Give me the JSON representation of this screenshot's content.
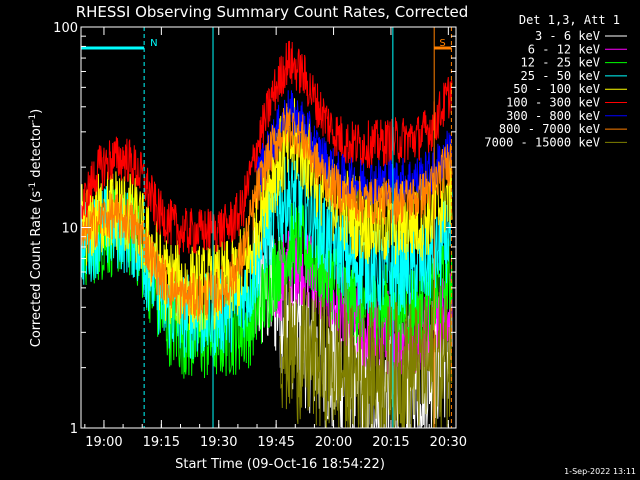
{
  "chart_data": {
    "type": "line",
    "title": "RHESSI Observing Summary Count Rates, Corrected",
    "xlabel": "Start Time (09-Oct-16 18:54:22)",
    "ylabel_main": "Corrected Count Rate (s",
    "ylabel_sup1": "-1",
    "ylabel_mid": " detector",
    "ylabel_sup2": "-1",
    "ylabel_end": ")",
    "ylog": true,
    "ylim": [
      1,
      100
    ],
    "xlim_minutes": [
      0,
      98
    ],
    "x_ticks": [
      {
        "label": "19:00",
        "minutes": 6
      },
      {
        "label": "19:15",
        "minutes": 21
      },
      {
        "label": "19:30",
        "minutes": 36
      },
      {
        "label": "19:45",
        "minutes": 51
      },
      {
        "label": "20:00",
        "minutes": 66
      },
      {
        "label": "20:15",
        "minutes": 81
      },
      {
        "label": "20:30",
        "minutes": 96
      }
    ],
    "y_ticks": [
      {
        "label": "1",
        "value": 1
      },
      {
        "label": "10",
        "value": 10
      },
      {
        "label": "100",
        "value": 100
      }
    ],
    "legend_title": "Det 1,3, Att 1",
    "legend_placement": "right",
    "timestamp": "1-Sep-2022 13:11",
    "flags": [
      {
        "label": "N",
        "start": 0,
        "end": 16.5,
        "color": "#00ffff"
      },
      {
        "label": "S",
        "start": 92.3,
        "end": 96.8,
        "color": "#ff8000"
      }
    ],
    "markers": [
      {
        "minutes": 16.5,
        "color": "#00ffff",
        "style": "dashed"
      },
      {
        "minutes": 34.5,
        "color": "#00ffff",
        "style": "solid"
      },
      {
        "minutes": 81.5,
        "color": "#00ffff",
        "style": "solid"
      },
      {
        "minutes": 92.3,
        "color": "#ff8000",
        "style": "solid"
      },
      {
        "minutes": 96.8,
        "color": "#ff8000",
        "style": "dashed"
      }
    ],
    "series": [
      {
        "name": "3 - 6 keV",
        "color": "#ffffff",
        "x": [
          45,
          50,
          55,
          57,
          60,
          65,
          70,
          75,
          80,
          85,
          90,
          95,
          97
        ],
        "y": [
          5,
          5,
          3.5,
          3,
          2.6,
          2,
          1.7,
          1.4,
          1.4,
          1.6,
          2,
          2.4,
          2.6
        ]
      },
      {
        "name": "6 - 12 keV",
        "color": "#ff00ff",
        "x": [
          50,
          55,
          57,
          60,
          65,
          70,
          75,
          80,
          85,
          90,
          95,
          97
        ],
        "y": [
          5,
          6.5,
          7,
          6,
          4.5,
          3.5,
          3,
          3,
          3,
          3.2,
          3.8,
          4
        ]
      },
      {
        "name": "12 - 25 keV",
        "color": "#00ff00",
        "x": [
          0,
          6,
          10,
          14,
          18,
          22,
          28,
          34,
          40,
          44,
          48,
          52,
          56,
          60,
          64,
          70,
          76,
          82,
          88,
          92,
          96,
          97
        ],
        "y": [
          8,
          9,
          9.5,
          9,
          5.5,
          3.5,
          2.8,
          2.8,
          3,
          3.3,
          4.5,
          7,
          8.5,
          7.5,
          6,
          4.5,
          4,
          4,
          4.2,
          4.5,
          5.5,
          6
        ]
      },
      {
        "name": "25 - 50 keV",
        "color": "#00ffff",
        "x": [
          0,
          6,
          10,
          14,
          18,
          22,
          28,
          34,
          40,
          44,
          48,
          52,
          56,
          60,
          64,
          70,
          76,
          82,
          88,
          92,
          96,
          97
        ],
        "y": [
          8,
          10,
          10,
          9,
          6,
          4,
          3.6,
          3.6,
          4,
          5,
          9,
          13,
          15,
          12,
          9,
          7,
          6,
          6,
          6.2,
          7,
          9,
          10
        ]
      },
      {
        "name": "50 - 100 keV",
        "color": "#ffff00",
        "x": [
          0,
          6,
          10,
          14,
          18,
          22,
          28,
          34,
          40,
          44,
          48,
          52,
          56,
          60,
          64,
          70,
          76,
          82,
          88,
          92,
          96,
          97
        ],
        "y": [
          10,
          12,
          12.5,
          11,
          8,
          5.5,
          5,
          5,
          5.5,
          7,
          15,
          22,
          27,
          21,
          15,
          12,
          10.5,
          10.5,
          11,
          12,
          15,
          17
        ]
      },
      {
        "name": "100 - 300 keV",
        "color": "#ff0000",
        "x": [
          0,
          4,
          8,
          12,
          16,
          20,
          26,
          32,
          38,
          42,
          46,
          50,
          54,
          58,
          62,
          66,
          70,
          76,
          82,
          88,
          92,
          96,
          97
        ],
        "y": [
          12,
          19,
          22,
          22,
          18,
          12,
          9.5,
          9.5,
          10,
          12,
          25,
          45,
          68,
          58,
          40,
          30,
          26,
          26,
          27,
          28,
          32,
          45,
          50
        ]
      },
      {
        "name": "300 - 800 keV",
        "color": "#0000ff",
        "x": [
          46,
          50,
          54,
          58,
          62,
          66,
          70,
          76,
          82,
          88,
          92,
          96,
          97
        ],
        "y": [
          17,
          27,
          38,
          33,
          24,
          19,
          17,
          17,
          17,
          17.5,
          19,
          24,
          26
        ]
      },
      {
        "name": "800 - 7000 keV",
        "color": "#ff8000",
        "x": [
          0,
          4,
          8,
          12,
          16,
          20,
          26,
          32,
          38,
          42,
          46,
          50,
          54,
          58,
          62,
          66,
          70,
          76,
          82,
          88,
          92,
          96,
          97
        ],
        "y": [
          8.5,
          10.5,
          11.5,
          11,
          9,
          6,
          4.5,
          4.5,
          5,
          7,
          15,
          25,
          33,
          28,
          20,
          16,
          14,
          13.5,
          13.5,
          14,
          16,
          21,
          23
        ]
      },
      {
        "name": "7000 - 15000 keV",
        "color": "#808000",
        "x": [
          52,
          55,
          60,
          65,
          70,
          75,
          80,
          85,
          90,
          95,
          97
        ],
        "y": [
          2.8,
          2.4,
          2.2,
          2,
          1.9,
          1.9,
          1.9,
          2,
          2,
          2.2,
          2.3
        ]
      }
    ]
  }
}
